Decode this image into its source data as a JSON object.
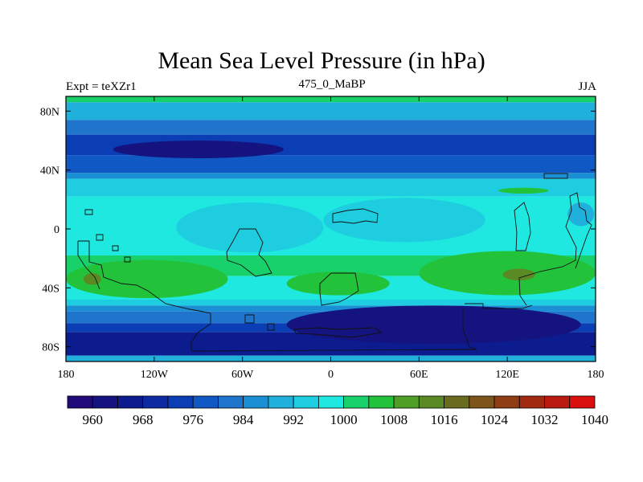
{
  "chart_data": {
    "type": "heatmap",
    "title": "Mean Sea Level Pressure (in hPa)",
    "left_label": "Expt = teXZr1",
    "center_label": "475_0_MaBP",
    "right_label": "JJA",
    "x_range": [
      -180,
      180
    ],
    "y_range": [
      -90,
      90
    ],
    "x_ticks": [
      {
        "value": -180,
        "label": "180"
      },
      {
        "value": -120,
        "label": "120W"
      },
      {
        "value": -60,
        "label": "60W"
      },
      {
        "value": 0,
        "label": "0"
      },
      {
        "value": 60,
        "label": "60E"
      },
      {
        "value": 120,
        "label": "120E"
      },
      {
        "value": 180,
        "label": "180"
      }
    ],
    "y_ticks": [
      {
        "value": 80,
        "label": "80N"
      },
      {
        "value": 40,
        "label": "40N"
      },
      {
        "value": 0,
        "label": "0"
      },
      {
        "value": -40,
        "label": "40S"
      },
      {
        "value": -80,
        "label": "80S"
      }
    ],
    "units": "hPa",
    "bands": [
      {
        "lat_top": 90,
        "lat_bottom": 86,
        "level": 1004
      },
      {
        "lat_top": 86,
        "lat_bottom": 74,
        "level": 992
      },
      {
        "lat_top": 74,
        "lat_bottom": 64,
        "level": 984
      },
      {
        "lat_top": 64,
        "lat_bottom": 50,
        "level": 976
      },
      {
        "lat_top": 50,
        "lat_bottom": 38,
        "level": 980
      },
      {
        "lat_top": 38,
        "lat_bottom": 34,
        "level": 988
      },
      {
        "lat_top": 34,
        "lat_bottom": 22,
        "level": 996
      },
      {
        "lat_top": 22,
        "lat_bottom": -18,
        "level": 1000
      },
      {
        "lat_top": -18,
        "lat_bottom": -32,
        "level": 1004
      },
      {
        "lat_top": -32,
        "lat_bottom": -48,
        "level": 1000
      },
      {
        "lat_top": -48,
        "lat_bottom": -52,
        "level": 996
      },
      {
        "lat_top": -52,
        "lat_bottom": -56,
        "level": 988
      },
      {
        "lat_top": -56,
        "lat_bottom": -64,
        "level": 984
      },
      {
        "lat_top": -64,
        "lat_bottom": -70,
        "level": 976
      },
      {
        "lat_top": -70,
        "lat_bottom": -86,
        "level": 968
      },
      {
        "lat_top": -86,
        "lat_bottom": -90,
        "level": 992
      }
    ],
    "features": [
      {
        "lon": -90,
        "lat": 54,
        "rlon": 58,
        "rlat": 6,
        "level": 964
      },
      {
        "lon": -55,
        "lat": 1,
        "rlon": 50,
        "rlat": 17,
        "level": 996
      },
      {
        "lon": 50,
        "lat": 6,
        "rlon": 55,
        "rlat": 15,
        "level": 996
      },
      {
        "lon": 70,
        "lat": -65,
        "rlon": 100,
        "rlat": 13,
        "level": 964
      },
      {
        "lon": -125,
        "lat": -34,
        "rlon": 55,
        "rlat": 13,
        "level": 1008
      },
      {
        "lon": 5,
        "lat": -37,
        "rlon": 35,
        "rlat": 8,
        "level": 1008
      },
      {
        "lon": 120,
        "lat": -30,
        "rlon": 60,
        "rlat": 15,
        "level": 1008
      },
      {
        "lon": -162,
        "lat": -34,
        "rlon": 6,
        "rlat": 4,
        "level": 1016
      },
      {
        "lon": 128,
        "lat": -31,
        "rlon": 11,
        "rlat": 4,
        "level": 1016
      },
      {
        "lon": 131,
        "lat": 26,
        "rlon": 17,
        "rlat": 2,
        "level": 1008
      },
      {
        "lon": 170,
        "lat": 10,
        "rlon": 9,
        "rlat": 8,
        "level": 992
      }
    ],
    "colorbar": {
      "levels": [
        960,
        964,
        968,
        972,
        976,
        980,
        984,
        988,
        992,
        996,
        1000,
        1004,
        1008,
        1012,
        1016,
        1020,
        1024,
        1028,
        1032,
        1036,
        1040
      ],
      "tick_labels": [
        "960",
        "968",
        "976",
        "984",
        "992",
        "1000",
        "1008",
        "1016",
        "1024",
        "1032",
        "1040"
      ],
      "colors": [
        "#210a7a",
        "#14137f",
        "#0c1b8e",
        "#0d2aa3",
        "#0b3eb4",
        "#1058c4",
        "#1f75cc",
        "#1a8fd3",
        "#1fb0db",
        "#1ecee0",
        "#1ee8e0",
        "#19d16a",
        "#23c23b",
        "#4f9f27",
        "#5b8a24",
        "#6b6b20",
        "#7d5419",
        "#8e3d14",
        "#a12a10",
        "#bb1a10",
        "#d9100e"
      ]
    }
  }
}
